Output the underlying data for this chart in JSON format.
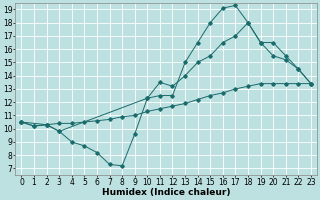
{
  "xlabel": "Humidex (Indice chaleur)",
  "xlim": [
    -0.5,
    23.5
  ],
  "ylim": [
    6.5,
    19.5
  ],
  "xticks": [
    0,
    1,
    2,
    3,
    4,
    5,
    6,
    7,
    8,
    9,
    10,
    11,
    12,
    13,
    14,
    15,
    16,
    17,
    18,
    19,
    20,
    21,
    22,
    23
  ],
  "yticks": [
    7,
    8,
    9,
    10,
    11,
    12,
    13,
    14,
    15,
    16,
    17,
    18,
    19
  ],
  "bg_color": "#bde0e0",
  "line_color": "#1a6b6b",
  "line1_x": [
    0,
    1,
    2,
    3,
    4,
    5,
    6,
    7,
    8,
    9,
    10,
    11,
    12,
    13,
    14,
    15,
    16,
    17,
    18,
    19,
    20,
    21,
    22,
    23
  ],
  "line1_y": [
    10.5,
    10.2,
    10.3,
    9.8,
    9.0,
    8.7,
    8.2,
    7.3,
    7.2,
    9.6,
    12.3,
    12.5,
    12.5,
    15.0,
    16.5,
    18.0,
    19.1,
    19.3,
    18.0,
    16.5,
    15.5,
    15.2,
    14.5,
    13.4
  ],
  "line2_x": [
    0,
    1,
    2,
    3,
    4,
    5,
    6,
    7,
    8,
    9,
    10,
    11,
    12,
    13,
    14,
    15,
    16,
    17,
    18,
    19,
    20,
    21,
    22,
    23
  ],
  "line2_y": [
    10.5,
    10.2,
    10.3,
    10.4,
    10.4,
    10.5,
    10.6,
    10.7,
    10.9,
    11.0,
    11.3,
    11.5,
    11.7,
    11.9,
    12.2,
    12.5,
    12.7,
    13.0,
    13.2,
    13.4,
    13.4,
    13.4,
    13.4,
    13.4
  ],
  "line3_x": [
    0,
    2,
    3,
    10,
    11,
    12,
    13,
    14,
    15,
    16,
    17,
    18,
    19,
    20,
    21,
    22,
    23
  ],
  "line3_y": [
    10.5,
    10.3,
    9.8,
    12.3,
    13.5,
    13.2,
    14.0,
    15.0,
    15.5,
    16.5,
    17.0,
    18.0,
    16.5,
    16.5,
    15.5,
    14.5,
    13.4
  ],
  "grid_color": "#ffffff",
  "tick_fontsize": 5.5,
  "xlabel_fontsize": 6.5
}
